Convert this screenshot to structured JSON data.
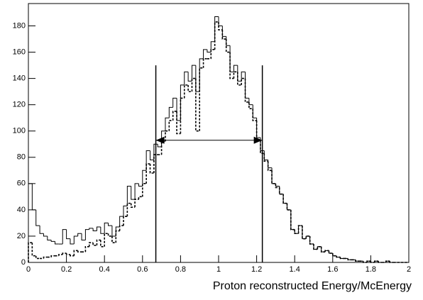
{
  "chart_data": {
    "type": "histogram",
    "x_label": "Proton reconstructed Energy/McEnergy",
    "bins": [
      0,
      0.02,
      0.04,
      0.06,
      0.08,
      0.1,
      0.12,
      0.14,
      0.16,
      0.18,
      0.2,
      0.22,
      0.24,
      0.26,
      0.28,
      0.3,
      0.32,
      0.34,
      0.36,
      0.38,
      0.4,
      0.42,
      0.44,
      0.46,
      0.48,
      0.5,
      0.52,
      0.54,
      0.56,
      0.58,
      0.6,
      0.62,
      0.64,
      0.66,
      0.68,
      0.7,
      0.72,
      0.74,
      0.76,
      0.78,
      0.8,
      0.82,
      0.84,
      0.86,
      0.88,
      0.9,
      0.92,
      0.94,
      0.96,
      0.98,
      1,
      1.02,
      1.04,
      1.06,
      1.08,
      1.1,
      1.12,
      1.14,
      1.16,
      1.18,
      1.2,
      1.22,
      1.24,
      1.26,
      1.28,
      1.3,
      1.32,
      1.34,
      1.36,
      1.38,
      1.4,
      1.42,
      1.44,
      1.46,
      1.48,
      1.5,
      1.52,
      1.54,
      1.56,
      1.58,
      1.6,
      1.62,
      1.64,
      1.66,
      1.68,
      1.7,
      1.72,
      1.74,
      1.76,
      1.78,
      1.8,
      1.82,
      1.84,
      1.86,
      1.88,
      1.9,
      1.92,
      1.94,
      1.96,
      1.98,
      2
    ],
    "series": [
      {
        "color": "#000000",
        "dash": "none",
        "values": [
          60,
          40,
          28,
          22,
          20,
          17,
          16,
          14,
          14,
          25,
          18,
          14,
          20,
          22,
          17,
          25,
          26,
          24,
          27,
          22,
          30,
          28,
          20,
          27,
          35,
          43,
          58,
          48,
          60,
          58,
          70,
          85,
          78,
          90,
          88,
          100,
          110,
          118,
          125,
          108,
          135,
          145,
          138,
          150,
          130,
          155,
          162,
          160,
          168,
          187,
          180,
          172,
          165,
          145,
          150,
          138,
          145,
          125,
          120,
          110,
          95,
          85,
          78,
          72,
          60,
          58,
          52,
          45,
          40,
          25,
          22,
          28,
          18,
          20,
          14,
          10,
          12,
          8,
          9,
          7,
          5,
          4,
          3,
          3,
          2,
          2,
          1,
          1,
          0,
          1,
          0,
          1,
          0,
          0,
          1,
          0,
          0,
          0,
          0,
          0
        ]
      },
      {
        "color": "#000000",
        "dash": "3,2",
        "values": [
          15,
          5,
          3,
          3,
          4,
          4,
          5,
          5,
          6,
          7,
          6,
          5,
          9,
          8,
          8,
          12,
          15,
          13,
          17,
          12,
          22,
          20,
          15,
          24,
          28,
          35,
          45,
          42,
          48,
          50,
          60,
          75,
          68,
          82,
          82,
          92,
          100,
          108,
          115,
          98,
          125,
          135,
          130,
          140,
          100,
          148,
          155,
          155,
          162,
          183,
          177,
          170,
          160,
          140,
          145,
          135,
          140,
          122,
          117,
          108,
          93,
          83,
          77,
          70,
          60,
          57,
          52,
          45,
          40,
          25,
          22,
          28,
          18,
          20,
          14,
          10,
          12,
          8,
          9,
          7,
          5,
          4,
          3,
          3,
          2,
          2,
          1,
          1,
          0,
          1,
          0,
          1,
          0,
          0,
          1,
          0,
          0,
          0,
          0,
          0
        ]
      }
    ],
    "vlines": [
      0.67,
      1.23
    ],
    "vline_top": 150,
    "arrow_y": 93,
    "xlim": [
      0,
      2
    ],
    "ylim": [
      0,
      197
    ],
    "xticks": [
      0,
      0.2,
      0.4,
      0.6,
      0.8,
      1,
      1.2,
      1.4,
      1.6,
      1.8,
      2
    ],
    "yticks": [
      0,
      20,
      40,
      60,
      80,
      100,
      120,
      140,
      160,
      180
    ]
  }
}
